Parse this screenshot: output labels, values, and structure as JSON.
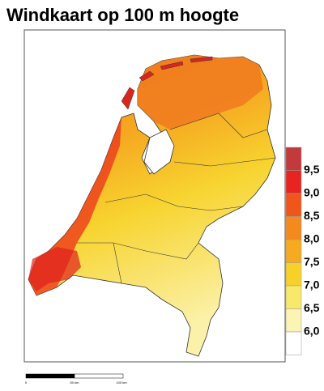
{
  "title": "Windkaart op 100 m hoogte",
  "legend": {
    "labels": [
      "9,5",
      "9,0",
      "8,5",
      "8,0",
      "7,5",
      "7,0",
      "6,5",
      "6,0"
    ],
    "colors": [
      "#c23a3c",
      "#e82420",
      "#f0561c",
      "#f48a1e",
      "#f6aa20",
      "#f7d12a",
      "#f8e96a",
      "#fbf4b4",
      "#ffffff"
    ]
  },
  "scale_bar": {
    "labels": [
      "0",
      "50 km",
      "100 km"
    ]
  }
}
